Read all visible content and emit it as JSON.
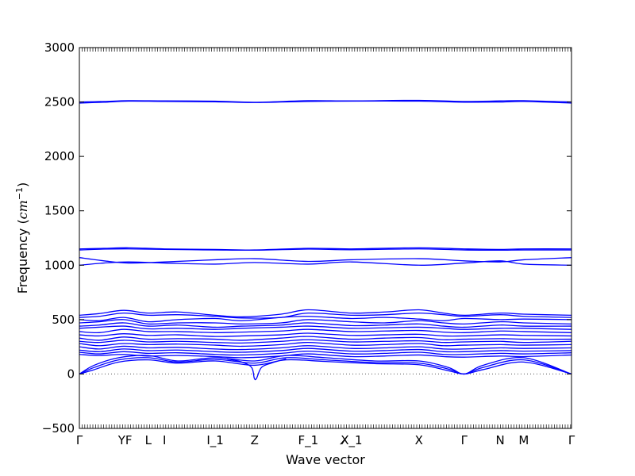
{
  "chart_data": {
    "type": "line",
    "xlabel": "Wave vector",
    "ylabel_prefix": "Frequency (",
    "ylabel_unit_base": "cm",
    "ylabel_unit_exp": "−1",
    "ylabel_suffix": ")",
    "ylim": [
      -500,
      3000
    ],
    "yticks": [
      -500,
      0,
      500,
      1000,
      1500,
      2000,
      2500,
      3000
    ],
    "ytick_labels": [
      "−500",
      "0",
      "500",
      "1000",
      "1500",
      "2000",
      "2500",
      "3000"
    ],
    "xlim": [
      0,
      1
    ],
    "xticks": [
      {
        "pos": 0.0,
        "label": "Γ"
      },
      {
        "pos": 0.093,
        "label": "YF"
      },
      {
        "pos": 0.14,
        "label": "L"
      },
      {
        "pos": 0.173,
        "label": "I"
      },
      {
        "pos": 0.276,
        "label": "I_1"
      },
      {
        "pos": 0.356,
        "label": "Z"
      },
      {
        "pos": 0.465,
        "label": "F_1"
      },
      {
        "pos": 0.553,
        "label": "X̸_1"
      },
      {
        "pos": 0.69,
        "label": "X"
      },
      {
        "pos": 0.782,
        "label": "Γ"
      },
      {
        "pos": 0.855,
        "label": "N"
      },
      {
        "pos": 0.903,
        "label": "M"
      },
      {
        "pos": 1.0,
        "label": "Γ"
      }
    ],
    "zero_line": true,
    "line_color": "#0000ff",
    "series": [
      {
        "x": [
          0,
          0.05,
          0.1,
          0.173,
          0.276,
          0.356,
          0.465,
          0.553,
          0.69,
          0.782,
          0.855,
          0.903,
          1
        ],
        "y": [
          2500,
          2505,
          2512,
          2510,
          2508,
          2498,
          2512,
          2510,
          2515,
          2505,
          2510,
          2512,
          2500
        ]
      },
      {
        "x": [
          0,
          0.05,
          0.1,
          0.173,
          0.276,
          0.356,
          0.465,
          0.553,
          0.69,
          0.782,
          0.855,
          0.903,
          1
        ],
        "y": [
          2490,
          2498,
          2508,
          2505,
          2502,
          2495,
          2505,
          2508,
          2508,
          2498,
          2500,
          2505,
          2490
        ]
      },
      {
        "x": [
          0,
          0.05,
          0.1,
          0.173,
          0.276,
          0.356,
          0.465,
          0.553,
          0.69,
          0.782,
          0.855,
          0.903,
          1
        ],
        "y": [
          1150,
          1155,
          1160,
          1150,
          1145,
          1140,
          1155,
          1150,
          1160,
          1150,
          1145,
          1150,
          1150
        ]
      },
      {
        "x": [
          0,
          0.05,
          0.1,
          0.173,
          0.276,
          0.356,
          0.465,
          0.553,
          0.69,
          0.782,
          0.855,
          0.903,
          1
        ],
        "y": [
          1140,
          1148,
          1150,
          1145,
          1140,
          1138,
          1148,
          1142,
          1150,
          1140,
          1138,
          1140,
          1140
        ]
      },
      {
        "x": [
          0,
          0.05,
          0.1,
          0.173,
          0.276,
          0.356,
          0.465,
          0.553,
          0.69,
          0.782,
          0.855,
          0.903,
          1
        ],
        "y": [
          1070,
          1040,
          1020,
          1030,
          1050,
          1060,
          1035,
          1050,
          1060,
          1040,
          1030,
          1050,
          1070
        ]
      },
      {
        "x": [
          0,
          0.05,
          0.1,
          0.173,
          0.276,
          0.356,
          0.465,
          0.553,
          0.69,
          0.782,
          0.855,
          0.903,
          1
        ],
        "y": [
          1000,
          1020,
          1030,
          1020,
          1010,
          1025,
          1010,
          1030,
          1000,
          1020,
          1040,
          1010,
          1000
        ]
      },
      {
        "x": [
          0,
          0.04,
          0.09,
          0.14,
          0.2,
          0.276,
          0.33,
          0.41,
          0.465,
          0.553,
          0.62,
          0.69,
          0.74,
          0.782,
          0.855,
          0.903,
          1
        ],
        "y": [
          540,
          555,
          585,
          560,
          570,
          540,
          525,
          550,
          590,
          560,
          570,
          590,
          560,
          540,
          560,
          550,
          540
        ]
      },
      {
        "x": [
          0,
          0.04,
          0.09,
          0.14,
          0.2,
          0.276,
          0.33,
          0.41,
          0.465,
          0.553,
          0.62,
          0.69,
          0.74,
          0.782,
          0.855,
          0.903,
          1
        ],
        "y": [
          520,
          530,
          560,
          540,
          545,
          530,
          515,
          520,
          560,
          540,
          545,
          560,
          545,
          530,
          545,
          530,
          520
        ]
      },
      {
        "x": [
          0,
          0.04,
          0.09,
          0.14,
          0.2,
          0.276,
          0.33,
          0.41,
          0.465,
          0.553,
          0.62,
          0.69,
          0.74,
          0.782,
          0.855,
          0.903,
          1
        ],
        "y": [
          500,
          490,
          520,
          480,
          500,
          510,
          490,
          520,
          530,
          510,
          520,
          505,
          490,
          510,
          500,
          505,
          500
        ]
      },
      {
        "x": [
          0,
          0.04,
          0.09,
          0.14,
          0.2,
          0.276,
          0.33,
          0.41,
          0.465,
          0.553,
          0.62,
          0.69,
          0.74,
          0.782,
          0.855,
          0.903,
          1
        ],
        "y": [
          470,
          480,
          500,
          460,
          470,
          470,
          460,
          470,
          500,
          480,
          470,
          490,
          470,
          460,
          480,
          470,
          460
        ]
      },
      {
        "x": [
          0,
          0.04,
          0.09,
          0.14,
          0.2,
          0.276,
          0.33,
          0.41,
          0.465,
          0.553,
          0.62,
          0.69,
          0.74,
          0.782,
          0.855,
          0.903,
          1
        ],
        "y": [
          440,
          450,
          470,
          440,
          450,
          430,
          440,
          450,
          470,
          445,
          450,
          460,
          440,
          430,
          450,
          440,
          440
        ]
      },
      {
        "x": [
          0,
          0.04,
          0.09,
          0.14,
          0.2,
          0.276,
          0.33,
          0.41,
          0.465,
          0.553,
          0.62,
          0.69,
          0.74,
          0.782,
          0.855,
          0.903,
          1
        ],
        "y": [
          420,
          430,
          440,
          415,
          420,
          410,
          420,
          430,
          440,
          420,
          425,
          430,
          420,
          410,
          420,
          420,
          410
        ]
      },
      {
        "x": [
          0,
          0.04,
          0.09,
          0.14,
          0.2,
          0.276,
          0.33,
          0.41,
          0.465,
          0.553,
          0.62,
          0.69,
          0.74,
          0.782,
          0.855,
          0.903,
          1
        ],
        "y": [
          390,
          380,
          410,
          390,
          390,
          380,
          385,
          395,
          410,
          390,
          395,
          400,
          385,
          380,
          395,
          390,
          380
        ]
      },
      {
        "x": [
          0,
          0.04,
          0.09,
          0.14,
          0.2,
          0.276,
          0.33,
          0.41,
          0.465,
          0.553,
          0.62,
          0.69,
          0.74,
          0.782,
          0.855,
          0.903,
          1
        ],
        "y": [
          360,
          350,
          370,
          355,
          360,
          345,
          350,
          360,
          375,
          355,
          360,
          365,
          350,
          350,
          360,
          355,
          350
        ]
      },
      {
        "x": [
          0,
          0.04,
          0.09,
          0.14,
          0.2,
          0.276,
          0.33,
          0.41,
          0.465,
          0.553,
          0.62,
          0.69,
          0.74,
          0.782,
          0.855,
          0.903,
          1
        ],
        "y": [
          330,
          310,
          340,
          320,
          325,
          320,
          310,
          330,
          345,
          320,
          330,
          335,
          315,
          320,
          325,
          320,
          320
        ]
      },
      {
        "x": [
          0,
          0.04,
          0.09,
          0.14,
          0.2,
          0.276,
          0.33,
          0.41,
          0.465,
          0.553,
          0.62,
          0.69,
          0.74,
          0.782,
          0.855,
          0.903,
          1
        ],
        "y": [
          300,
          290,
          310,
          295,
          300,
          290,
          285,
          300,
          315,
          295,
          300,
          305,
          290,
          295,
          300,
          290,
          300
        ]
      },
      {
        "x": [
          0,
          0.04,
          0.09,
          0.14,
          0.2,
          0.276,
          0.33,
          0.41,
          0.465,
          0.553,
          0.62,
          0.69,
          0.74,
          0.782,
          0.855,
          0.903,
          1
        ],
        "y": [
          280,
          260,
          280,
          270,
          275,
          265,
          255,
          270,
          290,
          265,
          270,
          280,
          260,
          265,
          270,
          265,
          270
        ]
      },
      {
        "x": [
          0,
          0.04,
          0.09,
          0.14,
          0.2,
          0.276,
          0.33,
          0.41,
          0.465,
          0.553,
          0.62,
          0.69,
          0.74,
          0.782,
          0.855,
          0.903,
          1
        ],
        "y": [
          250,
          230,
          255,
          240,
          245,
          230,
          225,
          240,
          260,
          235,
          240,
          250,
          230,
          230,
          240,
          235,
          240
        ]
      },
      {
        "x": [
          0,
          0.04,
          0.09,
          0.14,
          0.2,
          0.276,
          0.33,
          0.41,
          0.465,
          0.553,
          0.62,
          0.69,
          0.74,
          0.782,
          0.855,
          0.903,
          1
        ],
        "y": [
          220,
          205,
          230,
          215,
          220,
          205,
          200,
          215,
          235,
          210,
          215,
          225,
          205,
          205,
          215,
          210,
          215
        ]
      },
      {
        "x": [
          0,
          0.04,
          0.09,
          0.14,
          0.2,
          0.276,
          0.33,
          0.41,
          0.465,
          0.553,
          0.62,
          0.69,
          0.74,
          0.782,
          0.855,
          0.903,
          1
        ],
        "y": [
          200,
          185,
          205,
          190,
          195,
          180,
          175,
          190,
          210,
          185,
          190,
          200,
          180,
          180,
          190,
          185,
          195
        ]
      },
      {
        "x": [
          0,
          0.04,
          0.09,
          0.14,
          0.2,
          0.276,
          0.33,
          0.41,
          0.465,
          0.553,
          0.62,
          0.69,
          0.74,
          0.782,
          0.855,
          0.903,
          1
        ],
        "y": [
          180,
          170,
          180,
          165,
          170,
          160,
          150,
          165,
          185,
          160,
          165,
          175,
          160,
          155,
          165,
          160,
          175
        ]
      },
      {
        "x": [
          0,
          0.03,
          0.08,
          0.14,
          0.2,
          0.276,
          0.356,
          0.42,
          0.5,
          0.6,
          0.69,
          0.75,
          0.782,
          0.82,
          0.903,
          1
        ],
        "y": [
          0,
          80,
          150,
          170,
          120,
          150,
          120,
          170,
          150,
          120,
          120,
          60,
          0,
          80,
          150,
          0
        ]
      },
      {
        "x": [
          0,
          0.03,
          0.08,
          0.14,
          0.2,
          0.276,
          0.356,
          0.42,
          0.5,
          0.6,
          0.69,
          0.75,
          0.782,
          0.82,
          0.903,
          1
        ],
        "y": [
          0,
          60,
          130,
          150,
          110,
          135,
          100,
          150,
          130,
          105,
          100,
          45,
          0,
          60,
          130,
          0
        ]
      },
      {
        "x": [
          0,
          0.03,
          0.08,
          0.14,
          0.2,
          0.276,
          0.356,
          0.42,
          0.5,
          0.6,
          0.69,
          0.75,
          0.782,
          0.82,
          0.903,
          1
        ],
        "y": [
          0,
          40,
          110,
          130,
          100,
          120,
          80,
          130,
          115,
          95,
          85,
          30,
          0,
          40,
          110,
          0
        ]
      },
      {
        "x": [
          0.3,
          0.33,
          0.35,
          0.3555,
          0.36,
          0.37,
          0.39,
          0.42
        ],
        "y": [
          140,
          110,
          60,
          -40,
          -40,
          60,
          100,
          140
        ]
      }
    ]
  }
}
